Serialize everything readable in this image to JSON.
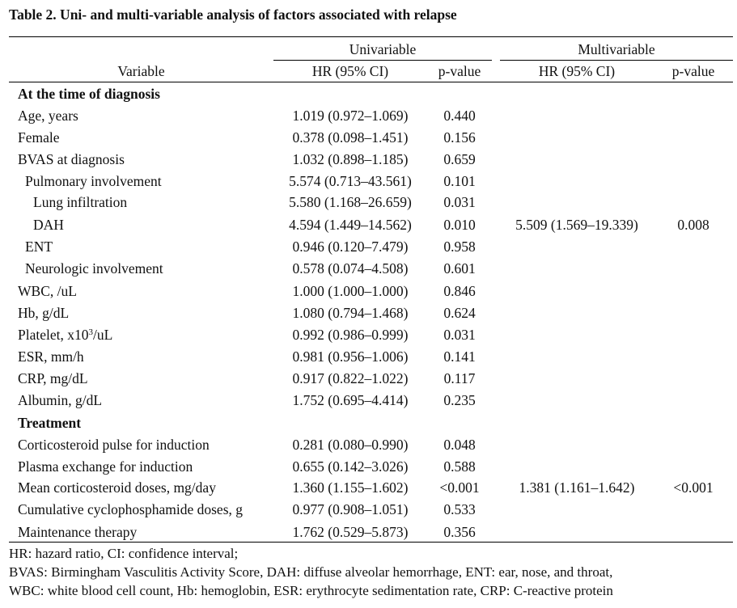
{
  "title": "Table 2. Uni- and multi-variable analysis of factors associated with relapse",
  "header": {
    "group_univariable": "Univariable",
    "group_multivariable": "Multivariable",
    "col_variable": "Variable",
    "col_hr_uni": "HR (95% CI)",
    "col_p_uni": "p-value",
    "col_hr_multi": "HR (95% CI)",
    "col_p_multi": "p-value"
  },
  "rows": [
    {
      "variable": "At the time of diagnosis",
      "section": true,
      "hr_uni": "",
      "p_uni": "",
      "hr_multi": "",
      "p_multi": ""
    },
    {
      "variable": "Age, years",
      "hr_uni": "1.019 (0.972–1.069)",
      "p_uni": "0.440",
      "hr_multi": "",
      "p_multi": ""
    },
    {
      "variable": "Female",
      "hr_uni": "0.378 (0.098–1.451)",
      "p_uni": "0.156",
      "hr_multi": "",
      "p_multi": ""
    },
    {
      "variable": "BVAS at diagnosis",
      "hr_uni": "1.032 (0.898–1.185)",
      "p_uni": "0.659",
      "hr_multi": "",
      "p_multi": ""
    },
    {
      "variable": "Pulmonary involvement",
      "indent": 1,
      "hr_uni": "5.574 (0.713–43.561)",
      "p_uni": "0.101",
      "hr_multi": "",
      "p_multi": ""
    },
    {
      "variable": "Lung infiltration",
      "indent": 2,
      "hr_uni": "5.580 (1.168–26.659)",
      "p_uni": "0.031",
      "hr_multi": "",
      "p_multi": ""
    },
    {
      "variable": "DAH",
      "indent": 2,
      "hr_uni": "4.594 (1.449–14.562)",
      "p_uni": "0.010",
      "hr_multi": "5.509 (1.569–19.339)",
      "p_multi": "0.008"
    },
    {
      "variable": "ENT",
      "indent": 1,
      "hr_uni": "0.946 (0.120–7.479)",
      "p_uni": "0.958",
      "hr_multi": "",
      "p_multi": ""
    },
    {
      "variable": "Neurologic involvement",
      "indent": 1,
      "hr_uni": "0.578 (0.074–4.508)",
      "p_uni": "0.601",
      "hr_multi": "",
      "p_multi": ""
    },
    {
      "variable": "WBC, /uL",
      "hr_uni": "1.000 (1.000–1.000)",
      "p_uni": "0.846",
      "hr_multi": "",
      "p_multi": ""
    },
    {
      "variable": "Hb, g/dL",
      "hr_uni": "1.080 (0.794–1.468)",
      "p_uni": "0.624",
      "hr_multi": "",
      "p_multi": ""
    },
    {
      "variable": "Platelet, x10",
      "sup": "3",
      "suffix": "/uL",
      "hr_uni": "0.992 (0.986–0.999)",
      "p_uni": "0.031",
      "hr_multi": "",
      "p_multi": ""
    },
    {
      "variable": "ESR, mm/h",
      "hr_uni": "0.981 (0.956–1.006)",
      "p_uni": "0.141",
      "hr_multi": "",
      "p_multi": ""
    },
    {
      "variable": "CRP, mg/dL",
      "hr_uni": "0.917 (0.822–1.022)",
      "p_uni": "0.117",
      "hr_multi": "",
      "p_multi": ""
    },
    {
      "variable": "Albumin, g/dL",
      "hr_uni": "1.752 (0.695–4.414)",
      "p_uni": "0.235",
      "hr_multi": "",
      "p_multi": ""
    },
    {
      "variable": "Treatment",
      "section": true,
      "hr_uni": "",
      "p_uni": "",
      "hr_multi": "",
      "p_multi": ""
    },
    {
      "variable": "Corticosteroid pulse for induction",
      "hr_uni": "0.281 (0.080–0.990)",
      "p_uni": "0.048",
      "hr_multi": "",
      "p_multi": ""
    },
    {
      "variable": "Plasma exchange for induction",
      "hr_uni": "0.655 (0.142–3.026)",
      "p_uni": "0.588",
      "hr_multi": "",
      "p_multi": ""
    },
    {
      "variable": "Mean corticosteroid doses, mg/day",
      "hr_uni": "1.360 (1.155–1.602)",
      "p_uni": "<0.001",
      "hr_multi": "1.381 (1.161–1.642)",
      "p_multi": "<0.001"
    },
    {
      "variable": "Cumulative cyclophosphamide doses, g",
      "hr_uni": "0.977 (0.908–1.051)",
      "p_uni": "0.533",
      "hr_multi": "",
      "p_multi": ""
    },
    {
      "variable": "Maintenance therapy",
      "hr_uni": "1.762 (0.529–5.873)",
      "p_uni": "0.356",
      "hr_multi": "",
      "p_multi": ""
    }
  ],
  "footnotes": [
    "HR: hazard ratio, CI: confidence interval;",
    "BVAS: Birmingham Vasculitis Activity Score, DAH: diffuse alveolar hemorrhage, ENT: ear, nose, and throat,",
    "WBC: white blood cell count, Hb: hemoglobin, ESR: erythrocyte sedimentation rate, CRP: C-reactive protein"
  ]
}
